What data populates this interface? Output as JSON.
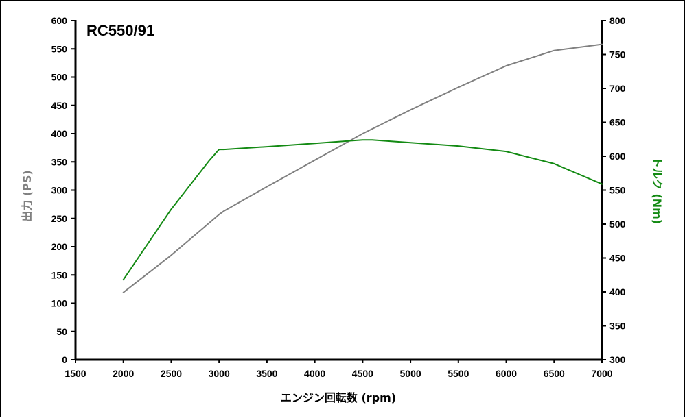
{
  "chart_data": {
    "type": "line",
    "title": "RC550/91",
    "xlabel": "エンジン回転数 (rpm)",
    "ylabel_left": "出力 (PS)",
    "ylabel_right": "トルク (Nm)",
    "xlim": [
      1500,
      7000
    ],
    "ylim_left": [
      0,
      600
    ],
    "ylim_right": [
      300,
      800
    ],
    "x_ticks": [
      1500,
      2000,
      2500,
      3000,
      3500,
      4000,
      4500,
      5000,
      5500,
      6000,
      6500,
      7000
    ],
    "y_left_ticks": [
      0,
      50,
      100,
      150,
      200,
      250,
      300,
      350,
      400,
      450,
      500,
      550,
      600
    ],
    "y_right_ticks": [
      300,
      350,
      400,
      450,
      500,
      550,
      600,
      650,
      700,
      750,
      800
    ],
    "grid": false,
    "colors": {
      "power": "#808080",
      "torque": "#138a13"
    },
    "series": [
      {
        "axis": "left",
        "color": "#808080",
        "x": [
          2000,
          2500,
          3000,
          3050,
          3500,
          4000,
          4500,
          5000,
          5500,
          6000,
          6500,
          7000
        ],
        "values": [
          119,
          185,
          257,
          263,
          306,
          353,
          400,
          442,
          482,
          520,
          547,
          558
        ]
      },
      {
        "axis": "right",
        "color": "#138a13",
        "x": [
          2000,
          2500,
          2900,
          3000,
          3050,
          3500,
          4000,
          4500,
          4600,
          5000,
          5500,
          6000,
          6500,
          7000
        ],
        "values": [
          418,
          522,
          594,
          610,
          610,
          614,
          619,
          624,
          624,
          620,
          615,
          607,
          589,
          559
        ]
      }
    ]
  }
}
